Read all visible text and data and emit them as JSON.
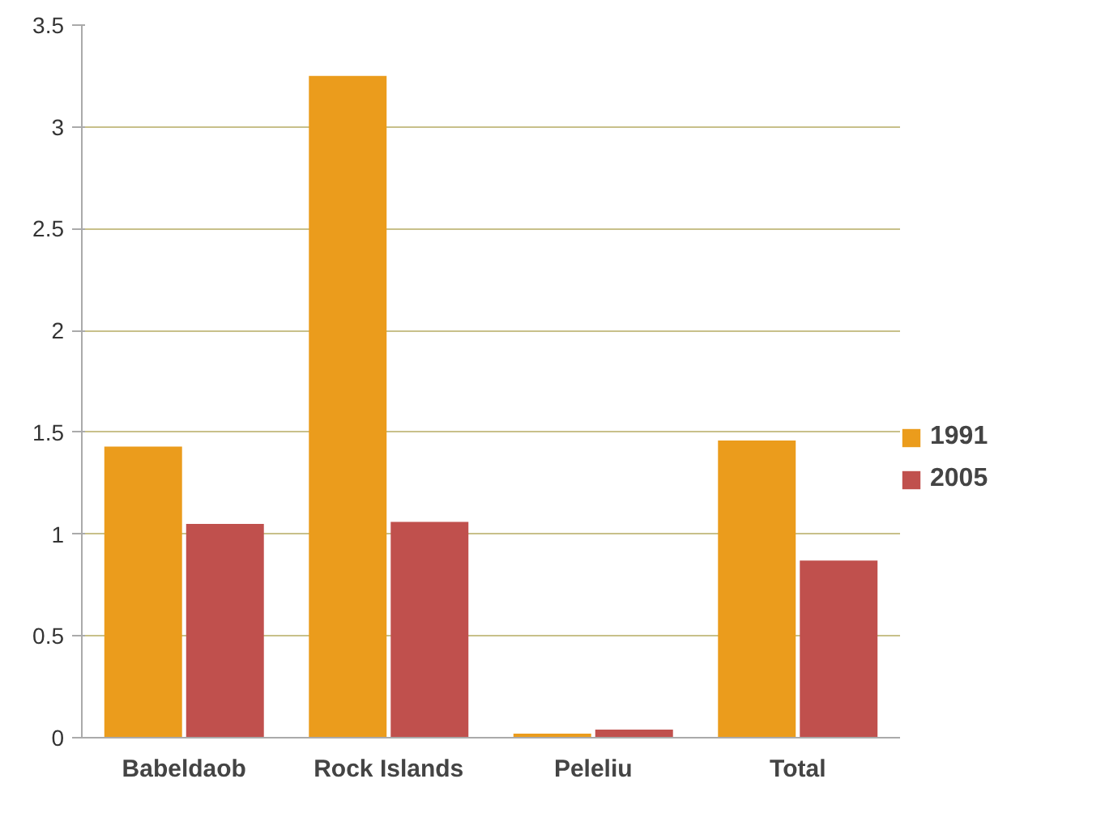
{
  "chart_data": {
    "type": "bar",
    "categories": [
      "Babeldaob",
      "Rock Islands",
      "Peleliu",
      "Total"
    ],
    "series": [
      {
        "name": "1991",
        "color": "#eb9c1c",
        "values": [
          1.43,
          3.25,
          0.02,
          1.46
        ]
      },
      {
        "name": "2005",
        "color": "#c0504d",
        "values": [
          1.05,
          1.06,
          0.04,
          0.87
        ]
      }
    ],
    "ylim": [
      0,
      3.5
    ],
    "yticks": [
      0,
      0.5,
      1,
      1.5,
      2,
      2.5,
      3,
      3.5
    ],
    "grid": "y",
    "legend": "right"
  }
}
